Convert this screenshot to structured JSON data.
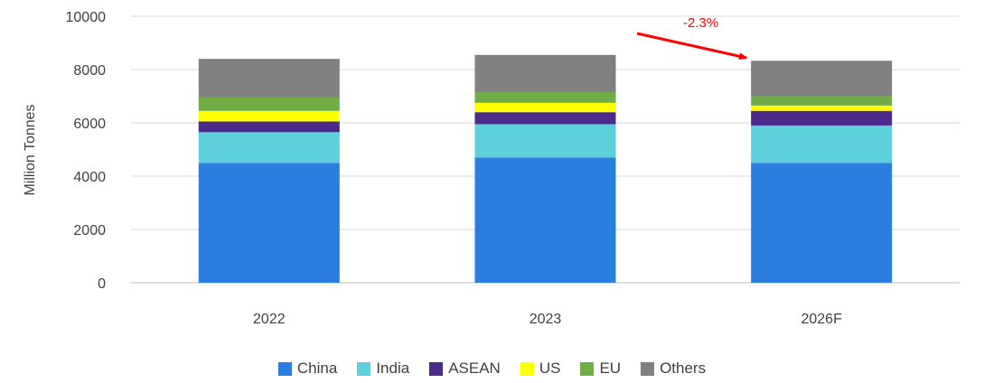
{
  "chart_data": {
    "type": "bar",
    "stacked": true,
    "categories": [
      "2022",
      "2023",
      "2026F"
    ],
    "series": [
      {
        "name": "China",
        "color": "#2b7de0",
        "values": [
          4500,
          4700,
          4500
        ]
      },
      {
        "name": "India",
        "color": "#5dd0dc",
        "values": [
          1150,
          1250,
          1400
        ]
      },
      {
        "name": "ASEAN",
        "color": "#4b2a8c",
        "values": [
          400,
          450,
          550
        ]
      },
      {
        "name": "US",
        "color": "#ffff00",
        "values": [
          400,
          350,
          200
        ]
      },
      {
        "name": "EU",
        "color": "#70ad47",
        "values": [
          500,
          400,
          350
        ]
      },
      {
        "name": "Others",
        "color": "#808080",
        "values": [
          1450,
          1400,
          1330
        ]
      }
    ],
    "ylabel": "Million Tonnes",
    "ylim": [
      0,
      10000
    ],
    "yticks": [
      0,
      2000,
      4000,
      6000,
      8000,
      10000
    ],
    "grid": true,
    "legend_position": "bottom",
    "annotation": {
      "text": "-2.3%",
      "color": "#ff0000"
    }
  }
}
